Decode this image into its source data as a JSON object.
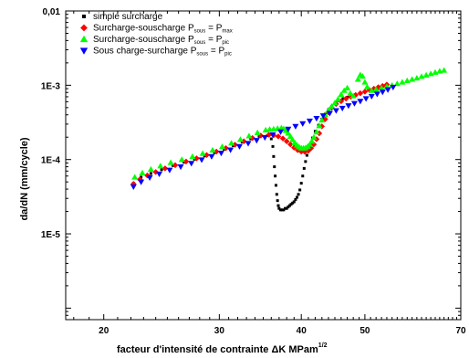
{
  "chart_data": {
    "type": "scatter",
    "title": "",
    "xlabel": "facteur d'intensité de contrainte ΔK MPam",
    "xlabel_sup": "1/2",
    "ylabel": "da/dN (mm/cycle)",
    "xscale": "log",
    "yscale": "log",
    "xlim": [
      17.5,
      70
    ],
    "ylim": [
      7e-07,
      0.01
    ],
    "x_tick_labels": [
      {
        "value": 20,
        "label": "20"
      },
      {
        "value": 30,
        "label": "30"
      },
      {
        "value": 40,
        "label": "40"
      },
      {
        "value": 50,
        "label": "50"
      },
      {
        "value": 70,
        "label": "70"
      }
    ],
    "y_tick_labels": [
      {
        "value": 1e-05,
        "label": "1E-5"
      },
      {
        "value": 0.0001,
        "label": "1E-4"
      },
      {
        "value": 0.001,
        "label": "1E-3"
      },
      {
        "value": 0.01,
        "label": "0,01"
      }
    ],
    "grid": false,
    "legend_position": "top-left",
    "series": [
      {
        "name": "simple surcharge",
        "label_main": "simple surcharge",
        "label_sub": "",
        "label_tail": "",
        "label_sub2": "",
        "marker": "square",
        "color": "#000000",
        "points": [
          [
            22.2,
            4.8e-05
          ],
          [
            22.8,
            5.8e-05
          ],
          [
            23.6,
            6.5e-05
          ],
          [
            24.5,
            7.3e-05
          ],
          [
            25.5,
            8.3e-05
          ],
          [
            26.5,
            9.2e-05
          ],
          [
            27.5,
            0.000101
          ],
          [
            28.5,
            0.000112
          ],
          [
            29.5,
            0.000124
          ],
          [
            30.5,
            0.000138
          ],
          [
            31.5,
            0.000154
          ],
          [
            32.5,
            0.000172
          ],
          [
            33.5,
            0.00019
          ],
          [
            34.5,
            0.000205
          ],
          [
            35.5,
            0.00021
          ],
          [
            36.0,
            0.00019
          ],
          [
            36.2,
            0.00015
          ],
          [
            36.3,
            0.00011
          ],
          [
            36.4,
            8e-05
          ],
          [
            36.5,
            6e-05
          ],
          [
            36.6,
            4.5e-05
          ],
          [
            36.7,
            3.4e-05
          ],
          [
            36.8,
            2.8e-05
          ],
          [
            36.9,
            2.4e-05
          ],
          [
            37.0,
            2.2e-05
          ],
          [
            37.2,
            2.1e-05
          ],
          [
            37.4,
            2.1e-05
          ],
          [
            37.6,
            2.1e-05
          ],
          [
            37.8,
            2.2e-05
          ],
          [
            38.0,
            2.2e-05
          ],
          [
            38.2,
            2.3e-05
          ],
          [
            38.4,
            2.4e-05
          ],
          [
            38.6,
            2.5e-05
          ],
          [
            38.8,
            2.6e-05
          ],
          [
            39.0,
            2.7e-05
          ],
          [
            39.2,
            2.9e-05
          ],
          [
            39.4,
            3.1e-05
          ],
          [
            39.6,
            3.4e-05
          ],
          [
            39.8,
            3.9e-05
          ],
          [
            40.0,
            4.8e-05
          ],
          [
            40.2,
            6e-05
          ],
          [
            40.4,
            7.6e-05
          ],
          [
            40.6,
            9.4e-05
          ],
          [
            40.8,
            0.000114
          ],
          [
            41.0,
            0.000136
          ],
          [
            41.3,
            0.00016
          ],
          [
            41.6,
            0.000195
          ],
          [
            42.0,
            0.00024
          ],
          [
            42.5,
            0.00029
          ],
          [
            43.0,
            0.00035
          ],
          [
            43.5,
            0.00041
          ],
          [
            44.0,
            0.00047
          ],
          [
            44.5,
            0.00052
          ],
          [
            45.0,
            0.00057
          ],
          [
            45.6,
            0.00062
          ],
          [
            46.3,
            0.00066
          ],
          [
            47.0,
            0.00069
          ],
          [
            47.8,
            0.00072
          ]
        ]
      },
      {
        "name": "Surcharge-souscharge Psous = Pmax",
        "label_main": "Surcharge-souscharge P",
        "label_sub": "sous",
        "label_tail": " = P",
        "label_sub2": "max",
        "marker": "diamond",
        "color": "#ff0000",
        "points": [
          [
            22.2,
            4.7e-05
          ],
          [
            22.7,
            5.4e-05
          ],
          [
            23.3,
            6.1e-05
          ],
          [
            24.0,
            6.8e-05
          ],
          [
            24.8,
            7.6e-05
          ],
          [
            25.7,
            8.4e-05
          ],
          [
            26.7,
            9.4e-05
          ],
          [
            27.7,
            0.000104
          ],
          [
            28.7,
            0.000115
          ],
          [
            29.7,
            0.000128
          ],
          [
            30.7,
            0.000142
          ],
          [
            31.7,
            0.000158
          ],
          [
            32.7,
            0.000176
          ],
          [
            33.7,
            0.000195
          ],
          [
            34.7,
            0.00021
          ],
          [
            35.7,
            0.000215
          ],
          [
            36.3,
            0.000212
          ],
          [
            36.9,
            0.000205
          ],
          [
            37.5,
            0.000192
          ],
          [
            38.0,
            0.000176
          ],
          [
            38.5,
            0.00016
          ],
          [
            39.0,
            0.000145
          ],
          [
            39.5,
            0.000134
          ],
          [
            40.0,
            0.000128
          ],
          [
            40.5,
            0.000127
          ],
          [
            41.0,
            0.000131
          ],
          [
            41.4,
            0.000142
          ],
          [
            41.8,
            0.00016
          ],
          [
            42.2,
            0.000188
          ],
          [
            42.6,
            0.000225
          ],
          [
            43.0,
            0.00028
          ],
          [
            43.5,
            0.00035
          ],
          [
            44.0,
            0.00043
          ],
          [
            44.5,
            0.0005
          ],
          [
            45.2,
            0.00056
          ],
          [
            46.0,
            0.00061
          ],
          [
            46.8,
            0.00066
          ],
          [
            47.6,
            0.0007
          ],
          [
            48.4,
            0.00074
          ],
          [
            49.2,
            0.00078
          ],
          [
            50.0,
            0.00082
          ],
          [
            50.8,
            0.00086
          ],
          [
            51.6,
            0.0009
          ],
          [
            52.4,
            0.00094
          ],
          [
            53.2,
            0.00098
          ],
          [
            54.0,
            0.00102
          ]
        ]
      },
      {
        "name": "Surcharge-souscharge Psous = Ppic",
        "label_main": "Surcharge-souscharge P",
        "label_sub": "sous",
        "label_tail": " = P",
        "label_sub2": "pic",
        "marker": "triangle-up",
        "color": "#00ff00",
        "points": [
          [
            22.3,
            5.8e-05
          ],
          [
            22.9,
            6.6e-05
          ],
          [
            23.6,
            7.4e-05
          ],
          [
            24.4,
            8.2e-05
          ],
          [
            25.3,
            9.1e-05
          ],
          [
            26.3,
            0.0001
          ],
          [
            27.3,
            0.00011
          ],
          [
            28.3,
            0.000121
          ],
          [
            29.3,
            0.000134
          ],
          [
            30.3,
            0.000149
          ],
          [
            31.3,
            0.000166
          ],
          [
            32.3,
            0.000186
          ],
          [
            33.3,
            0.000208
          ],
          [
            34.3,
            0.00023
          ],
          [
            35.3,
            0.00025
          ],
          [
            35.8,
            0.000255
          ],
          [
            36.3,
            0.000258
          ],
          [
            36.8,
            0.000262
          ],
          [
            37.3,
            0.000266
          ],
          [
            37.6,
            0.00026
          ],
          [
            37.9,
            0.000245
          ],
          [
            38.2,
            0.000226
          ],
          [
            38.5,
            0.000205
          ],
          [
            38.8,
            0.000185
          ],
          [
            39.1,
            0.000168
          ],
          [
            39.4,
            0.000156
          ],
          [
            39.7,
            0.000148
          ],
          [
            40.0,
            0.000143
          ],
          [
            40.3,
            0.000142
          ],
          [
            40.6,
            0.000144
          ],
          [
            40.9,
            0.00015
          ],
          [
            41.2,
            0.00016
          ],
          [
            41.5,
            0.000176
          ],
          [
            41.8,
            0.0002
          ],
          [
            42.2,
            0.000235
          ],
          [
            42.6,
            0.000285
          ],
          [
            43.0,
            0.00034
          ],
          [
            43.5,
            0.0004
          ],
          [
            44.0,
            0.00046
          ],
          [
            44.5,
            0.00052
          ],
          [
            45.0,
            0.00058
          ],
          [
            45.5,
            0.00065
          ],
          [
            46.0,
            0.00075
          ],
          [
            46.5,
            0.00085
          ],
          [
            47.0,
            0.00092
          ],
          [
            47.5,
            0.00078
          ],
          [
            48.0,
            0.00072
          ],
          [
            48.8,
            0.0012
          ],
          [
            49.2,
            0.00138
          ],
          [
            49.6,
            0.00132
          ],
          [
            50.0,
            0.0011
          ],
          [
            50.4,
            0.00095
          ],
          [
            51.2,
            0.00085
          ],
          [
            52.0,
            0.00088
          ],
          [
            53.0,
            0.00092
          ],
          [
            54.0,
            0.00096
          ],
          [
            55.0,
            0.001
          ],
          [
            56.0,
            0.00105
          ],
          [
            57.0,
            0.0011
          ],
          [
            58.0,
            0.00115
          ],
          [
            59.0,
            0.0012
          ],
          [
            60.0,
            0.00125
          ],
          [
            61.0,
            0.00131
          ],
          [
            62.0,
            0.00137
          ],
          [
            63.0,
            0.00143
          ],
          [
            64.0,
            0.00149
          ],
          [
            65.0,
            0.00155
          ],
          [
            66.0,
            0.00159
          ]
        ]
      },
      {
        "name": "Sous charge-surcharge Psous = Ppic",
        "label_main": "Sous charge-surcharge P",
        "label_sub": "sous",
        "label_tail": " = P",
        "label_sub2": "pic",
        "marker": "triangle-down",
        "color": "#0000ff",
        "points": [
          [
            22.2,
            4.3e-05
          ],
          [
            22.8,
            5e-05
          ],
          [
            23.5,
            5.7e-05
          ],
          [
            24.3,
            6.4e-05
          ],
          [
            25.2,
            7.2e-05
          ],
          [
            26.2,
            8e-05
          ],
          [
            27.2,
            8.9e-05
          ],
          [
            28.2,
            9.9e-05
          ],
          [
            29.2,
            0.00011
          ],
          [
            30.2,
            0.000122
          ],
          [
            31.2,
            0.000135
          ],
          [
            32.2,
            0.00015
          ],
          [
            33.2,
            0.000165
          ],
          [
            34.2,
            0.000181
          ],
          [
            35.2,
            0.000198
          ],
          [
            36.2,
            0.000216
          ],
          [
            37.2,
            0.000236
          ],
          [
            38.2,
            0.000257
          ],
          [
            39.2,
            0.00028
          ],
          [
            40.2,
            0.000304
          ],
          [
            41.2,
            0.00033
          ],
          [
            42.2,
            0.000358
          ],
          [
            43.2,
            0.000388
          ],
          [
            44.2,
            0.00042
          ],
          [
            45.2,
            0.000455
          ],
          [
            46.2,
            0.00049
          ],
          [
            47.2,
            0.00053
          ],
          [
            48.2,
            0.00057
          ],
          [
            49.2,
            0.00061
          ],
          [
            50.2,
            0.00066
          ],
          [
            51.2,
            0.00071
          ],
          [
            52.2,
            0.00076
          ],
          [
            53.2,
            0.00081
          ],
          [
            54.2,
            0.00087
          ],
          [
            55.2,
            0.00094
          ]
        ]
      }
    ]
  }
}
